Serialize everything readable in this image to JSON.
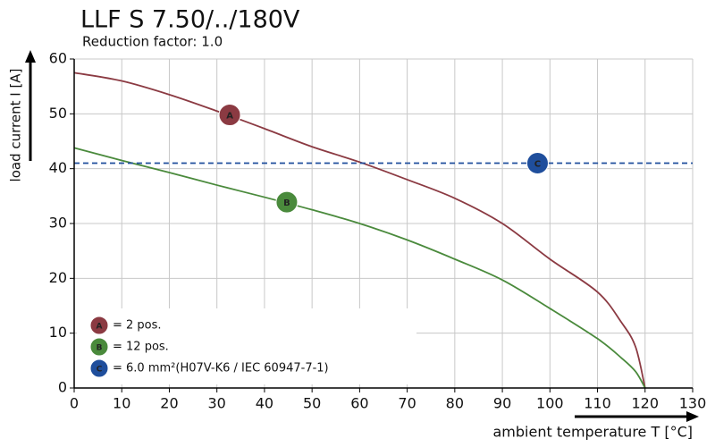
{
  "chart_data": {
    "type": "line",
    "title": "LLF S 7.50/../180V",
    "subtitle": "Reduction factor: 1.0",
    "y_label": "load current I [A]",
    "x_label": "ambient temperature T [°C]",
    "xlim": [
      0,
      130
    ],
    "xticks": [
      0,
      10,
      20,
      30,
      40,
      50,
      60,
      70,
      80,
      90,
      100,
      110,
      120,
      130
    ],
    "ylim": [
      0,
      60
    ],
    "yticks": [
      0,
      10,
      20,
      30,
      40,
      50,
      60
    ],
    "grid": true,
    "series": [
      {
        "name": "A",
        "legend_label": "= 2 pos.",
        "color": "#8b3a42",
        "style": "solid",
        "x": [
          0,
          10,
          20,
          30,
          40,
          50,
          60,
          70,
          80,
          90,
          100,
          110,
          115,
          118,
          120
        ],
        "values": [
          57.5,
          56,
          53.5,
          50.5,
          47.3,
          44,
          41.2,
          38,
          34.6,
          30,
          23.5,
          17.5,
          12,
          7.5,
          0
        ],
        "marker": {
          "x": 32.7,
          "y": 49.8
        }
      },
      {
        "name": "B",
        "legend_label": "= 12 pos.",
        "color": "#4a8a3c",
        "style": "solid",
        "x": [
          0,
          10,
          20,
          30,
          40,
          50,
          60,
          70,
          80,
          90,
          100,
          110,
          115,
          118,
          120
        ],
        "values": [
          43.8,
          41.5,
          39.3,
          37,
          34.8,
          32.5,
          30,
          27,
          23.5,
          19.7,
          14.5,
          9,
          5.5,
          3,
          0
        ],
        "marker": {
          "x": 44.7,
          "y": 33.9
        }
      },
      {
        "name": "C",
        "legend_label": "= 6.0 mm²(H07V-K6 / IEC 60947-7-1)",
        "color": "#1f4e9c",
        "style": "dashed",
        "x": [
          0,
          130
        ],
        "values": [
          41,
          41
        ],
        "marker": {
          "x": 97.4,
          "y": 41
        }
      }
    ]
  }
}
